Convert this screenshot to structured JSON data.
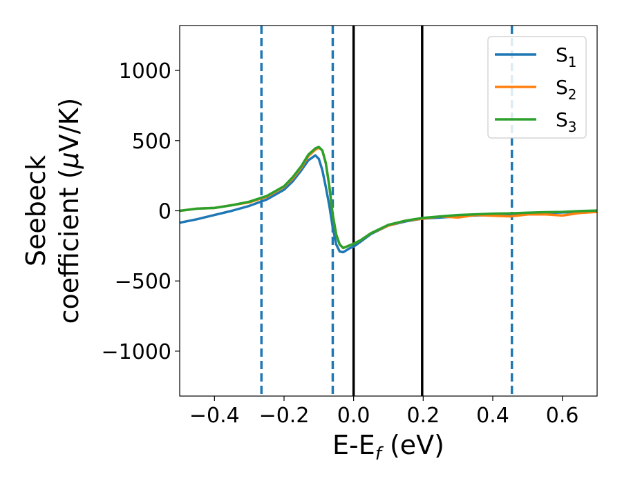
{
  "chart_data": {
    "type": "line",
    "xlabel": "E-E",
    "xlabel_sub": "f",
    "xlabel_unit": " (eV)",
    "ylabel_line1": "Seebeck",
    "ylabel_line2_a": "coefficient  (",
    "ylabel_mu": "μ",
    "ylabel_line2_b": "V/K)",
    "xlim": [
      -0.5,
      0.7
    ],
    "ylim": [
      -1320,
      1320
    ],
    "xticks": [
      -0.4,
      -0.2,
      0.0,
      0.2,
      0.4,
      0.6
    ],
    "xtick_labels": [
      "−0.4",
      "−0.2",
      "0.0",
      "0.2",
      "0.4",
      "0.6"
    ],
    "yticks": [
      -1000,
      -500,
      0,
      500,
      1000
    ],
    "ytick_labels": [
      "−1000",
      "−500",
      "0",
      "500",
      "1000"
    ],
    "grid": false,
    "legend_position": "top-right",
    "vlines_dashed": {
      "x": [
        -0.265,
        -0.06,
        0.455
      ],
      "color": "#1f77b4"
    },
    "vlines_solid": {
      "x": [
        0.0,
        0.197
      ],
      "color": "#000000"
    },
    "series": [
      {
        "name": "S",
        "sub": "1",
        "color": "#1f77b4",
        "x": [
          -0.5,
          -0.45,
          -0.4,
          -0.35,
          -0.3,
          -0.25,
          -0.2,
          -0.175,
          -0.15,
          -0.13,
          -0.11,
          -0.1,
          -0.09,
          -0.08,
          -0.07,
          -0.06,
          -0.05,
          -0.04,
          -0.03,
          -0.02,
          -0.01,
          0.0,
          0.02,
          0.05,
          0.1,
          0.15,
          0.2,
          0.25,
          0.3,
          0.35,
          0.4,
          0.45,
          0.5,
          0.55,
          0.6,
          0.65,
          0.7
        ],
        "y": [
          -85,
          -60,
          -30,
          0,
          35,
          80,
          150,
          210,
          290,
          360,
          395,
          370,
          290,
          170,
          40,
          -120,
          -240,
          -290,
          -295,
          -280,
          -265,
          -255,
          -220,
          -165,
          -105,
          -75,
          -55,
          -48,
          -40,
          -33,
          -30,
          -25,
          -22,
          -16,
          -12,
          -8,
          -5
        ]
      },
      {
        "name": "S",
        "sub": "2",
        "color": "#ff7f0e",
        "x": [
          -0.5,
          -0.45,
          -0.4,
          -0.35,
          -0.3,
          -0.25,
          -0.2,
          -0.175,
          -0.15,
          -0.13,
          -0.11,
          -0.1,
          -0.09,
          -0.08,
          -0.07,
          -0.06,
          -0.05,
          -0.04,
          -0.03,
          -0.02,
          -0.01,
          0.0,
          0.02,
          0.05,
          0.1,
          0.15,
          0.2,
          0.25,
          0.3,
          0.35,
          0.4,
          0.45,
          0.5,
          0.55,
          0.6,
          0.65,
          0.7
        ],
        "y": [
          0,
          15,
          20,
          40,
          60,
          100,
          170,
          230,
          310,
          390,
          435,
          450,
          430,
          340,
          180,
          -30,
          -170,
          -240,
          -265,
          -255,
          -245,
          -235,
          -210,
          -160,
          -105,
          -70,
          -55,
          -40,
          -48,
          -30,
          -35,
          -40,
          -26,
          -25,
          -34,
          -15,
          -8
        ]
      },
      {
        "name": "S",
        "sub": "3",
        "color": "#2ca02c",
        "x": [
          -0.5,
          -0.45,
          -0.4,
          -0.35,
          -0.3,
          -0.25,
          -0.2,
          -0.175,
          -0.15,
          -0.13,
          -0.11,
          -0.1,
          -0.09,
          -0.08,
          -0.07,
          -0.06,
          -0.05,
          -0.04,
          -0.03,
          -0.02,
          -0.01,
          0.0,
          0.02,
          0.05,
          0.1,
          0.15,
          0.2,
          0.25,
          0.3,
          0.35,
          0.4,
          0.45,
          0.5,
          0.55,
          0.6,
          0.65,
          0.7
        ],
        "y": [
          0,
          15,
          20,
          40,
          65,
          105,
          175,
          240,
          320,
          400,
          445,
          455,
          430,
          340,
          180,
          -30,
          -170,
          -240,
          -265,
          -255,
          -245,
          -235,
          -210,
          -160,
          -100,
          -70,
          -50,
          -40,
          -30,
          -25,
          -20,
          -18,
          -14,
          -10,
          -8,
          -2,
          2
        ]
      }
    ]
  }
}
